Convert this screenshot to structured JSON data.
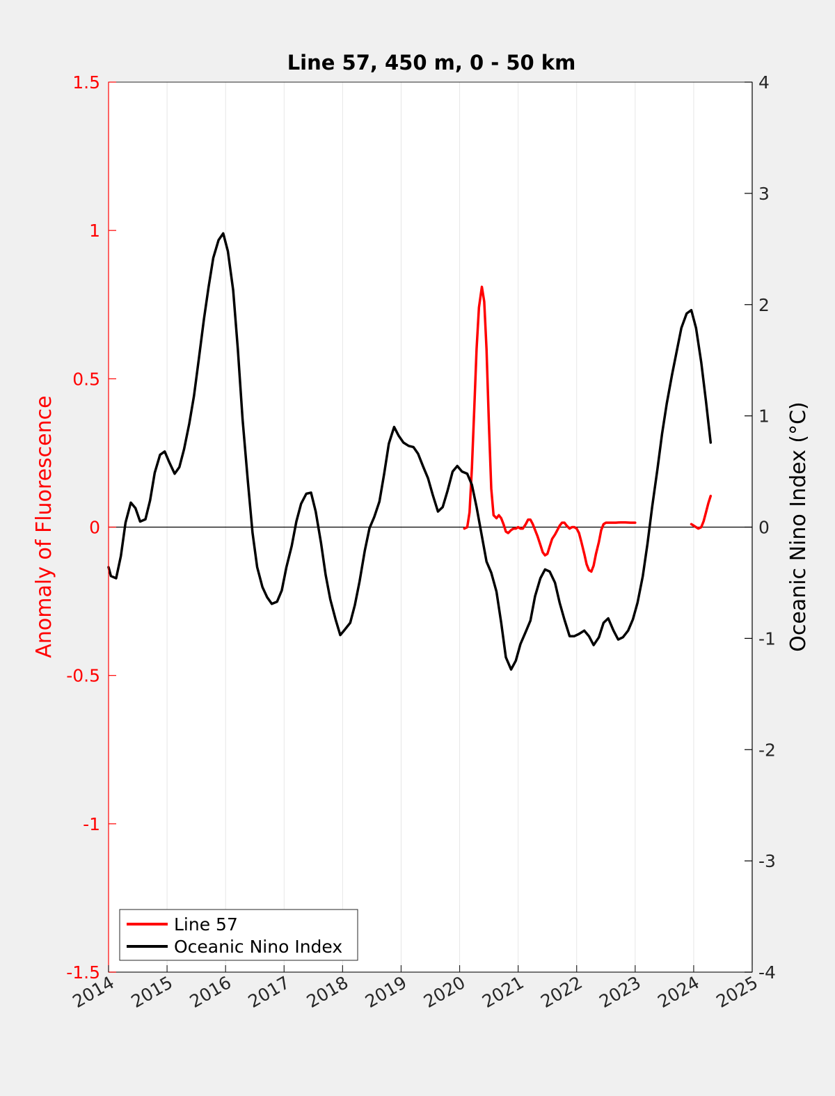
{
  "chart_data": {
    "type": "line",
    "title": "Line 57, 450 m, 0 - 50 km",
    "xlabel": "",
    "xlim": [
      2014,
      2025
    ],
    "x_ticks": [
      2014,
      2015,
      2016,
      2017,
      2018,
      2019,
      2020,
      2021,
      2022,
      2023,
      2024,
      2025
    ],
    "x_tick_labels": [
      "2014",
      "2015",
      "2016",
      "2017",
      "2018",
      "2019",
      "2020",
      "2021",
      "2022",
      "2023",
      "2024",
      "2025"
    ],
    "vertical_grid": true,
    "y_left": {
      "label": "Anomaly of Fluorescence",
      "color": "#ff0000",
      "ylim": [
        -1.5,
        1.5
      ],
      "ticks": [
        -1.5,
        -1,
        -0.5,
        0,
        0.5,
        1,
        1.5
      ],
      "tick_labels": [
        "-1.5",
        "-1",
        "-0.5",
        "0",
        "0.5",
        "1",
        "1.5"
      ]
    },
    "y_right": {
      "label": "Oceanic Nino Index (°C)",
      "color": "#000000",
      "ylim": [
        -4,
        4
      ],
      "ticks": [
        -4,
        -3,
        -2,
        -1,
        0,
        1,
        2,
        3,
        4
      ],
      "tick_labels": [
        "-4",
        "-3",
        "-2",
        "-1",
        "0",
        "1",
        "2",
        "3",
        "4"
      ]
    },
    "zero_line": 0,
    "legend": {
      "placement": "bottom-left"
    },
    "series": [
      {
        "name": "Line 57",
        "axis": "left",
        "color": "#ff0000",
        "segments": [
          [
            [
              2020.08,
              -0.005
            ],
            [
              2020.13,
              0.0
            ],
            [
              2020.17,
              0.05
            ],
            [
              2020.21,
              0.2
            ],
            [
              2020.25,
              0.4
            ],
            [
              2020.29,
              0.6
            ],
            [
              2020.33,
              0.74
            ],
            [
              2020.38,
              0.81
            ],
            [
              2020.42,
              0.76
            ],
            [
              2020.46,
              0.6
            ],
            [
              2020.5,
              0.35
            ],
            [
              2020.54,
              0.13
            ],
            [
              2020.58,
              0.04
            ],
            [
              2020.63,
              0.03
            ],
            [
              2020.67,
              0.04
            ],
            [
              2020.71,
              0.03
            ],
            [
              2020.75,
              0.01
            ],
            [
              2020.79,
              -0.015
            ],
            [
              2020.83,
              -0.02
            ],
            [
              2020.88,
              -0.01
            ],
            [
              2020.92,
              -0.005
            ],
            [
              2020.96,
              -0.005
            ],
            [
              2021.0,
              0.0
            ],
            [
              2021.04,
              -0.005
            ],
            [
              2021.08,
              -0.005
            ],
            [
              2021.13,
              0.01
            ],
            [
              2021.17,
              0.025
            ],
            [
              2021.21,
              0.025
            ],
            [
              2021.25,
              0.01
            ],
            [
              2021.29,
              -0.01
            ],
            [
              2021.33,
              -0.03
            ],
            [
              2021.38,
              -0.06
            ],
            [
              2021.42,
              -0.085
            ],
            [
              2021.46,
              -0.095
            ],
            [
              2021.5,
              -0.09
            ],
            [
              2021.54,
              -0.065
            ],
            [
              2021.58,
              -0.04
            ],
            [
              2021.63,
              -0.025
            ],
            [
              2021.67,
              -0.01
            ],
            [
              2021.71,
              0.005
            ],
            [
              2021.75,
              0.015
            ],
            [
              2021.79,
              0.015
            ],
            [
              2021.83,
              0.005
            ],
            [
              2021.88,
              -0.005
            ],
            [
              2021.92,
              0.0
            ],
            [
              2021.96,
              0.0
            ],
            [
              2022.0,
              -0.005
            ],
            [
              2022.04,
              -0.02
            ],
            [
              2022.08,
              -0.05
            ],
            [
              2022.13,
              -0.09
            ],
            [
              2022.17,
              -0.125
            ],
            [
              2022.21,
              -0.145
            ],
            [
              2022.25,
              -0.15
            ],
            [
              2022.29,
              -0.13
            ],
            [
              2022.33,
              -0.09
            ],
            [
              2022.38,
              -0.05
            ],
            [
              2022.42,
              -0.01
            ],
            [
              2022.46,
              0.01
            ],
            [
              2022.5,
              0.015
            ],
            [
              2022.58,
              0.015
            ],
            [
              2022.67,
              0.015
            ],
            [
              2022.75,
              0.016
            ],
            [
              2022.83,
              0.016
            ],
            [
              2022.92,
              0.015
            ],
            [
              2023.0,
              0.015
            ]
          ],
          [
            [
              2023.96,
              0.01
            ],
            [
              2024.0,
              0.005
            ],
            [
              2024.04,
              0.0
            ],
            [
              2024.08,
              -0.005
            ],
            [
              2024.13,
              0.0
            ],
            [
              2024.17,
              0.02
            ],
            [
              2024.21,
              0.05
            ],
            [
              2024.25,
              0.08
            ],
            [
              2024.29,
              0.105
            ]
          ]
        ]
      },
      {
        "name": "Oceanic Nino Index",
        "axis": "right",
        "color": "#000000",
        "segments": [
          [
            [
              2014.0,
              -0.36
            ],
            [
              2014.04,
              -0.44
            ],
            [
              2014.13,
              -0.46
            ],
            [
              2014.21,
              -0.26
            ],
            [
              2014.29,
              0.04
            ],
            [
              2014.38,
              0.22
            ],
            [
              2014.46,
              0.17
            ],
            [
              2014.54,
              0.05
            ],
            [
              2014.63,
              0.07
            ],
            [
              2014.71,
              0.24
            ],
            [
              2014.79,
              0.49
            ],
            [
              2014.88,
              0.65
            ],
            [
              2014.96,
              0.68
            ],
            [
              2015.04,
              0.58
            ],
            [
              2015.13,
              0.48
            ],
            [
              2015.21,
              0.54
            ],
            [
              2015.29,
              0.7
            ],
            [
              2015.38,
              0.93
            ],
            [
              2015.46,
              1.18
            ],
            [
              2015.54,
              1.5
            ],
            [
              2015.63,
              1.87
            ],
            [
              2015.71,
              2.16
            ],
            [
              2015.79,
              2.42
            ],
            [
              2015.88,
              2.58
            ],
            [
              2015.96,
              2.64
            ],
            [
              2016.04,
              2.48
            ],
            [
              2016.13,
              2.13
            ],
            [
              2016.21,
              1.6
            ],
            [
              2016.29,
              0.97
            ],
            [
              2016.38,
              0.42
            ],
            [
              2016.46,
              -0.05
            ],
            [
              2016.54,
              -0.36
            ],
            [
              2016.63,
              -0.54
            ],
            [
              2016.71,
              -0.63
            ],
            [
              2016.79,
              -0.69
            ],
            [
              2016.88,
              -0.67
            ],
            [
              2016.96,
              -0.57
            ],
            [
              2017.04,
              -0.36
            ],
            [
              2017.13,
              -0.17
            ],
            [
              2017.21,
              0.05
            ],
            [
              2017.29,
              0.21
            ],
            [
              2017.38,
              0.3
            ],
            [
              2017.46,
              0.31
            ],
            [
              2017.54,
              0.14
            ],
            [
              2017.63,
              -0.14
            ],
            [
              2017.71,
              -0.43
            ],
            [
              2017.79,
              -0.65
            ],
            [
              2017.88,
              -0.83
            ],
            [
              2017.96,
              -0.97
            ],
            [
              2018.04,
              -0.92
            ],
            [
              2018.13,
              -0.86
            ],
            [
              2018.21,
              -0.7
            ],
            [
              2018.29,
              -0.49
            ],
            [
              2018.38,
              -0.21
            ],
            [
              2018.46,
              -0.01
            ],
            [
              2018.54,
              0.09
            ],
            [
              2018.63,
              0.23
            ],
            [
              2018.71,
              0.48
            ],
            [
              2018.79,
              0.75
            ],
            [
              2018.88,
              0.9
            ],
            [
              2018.96,
              0.82
            ],
            [
              2019.04,
              0.76
            ],
            [
              2019.13,
              0.73
            ],
            [
              2019.21,
              0.72
            ],
            [
              2019.29,
              0.66
            ],
            [
              2019.38,
              0.54
            ],
            [
              2019.46,
              0.44
            ],
            [
              2019.54,
              0.29
            ],
            [
              2019.63,
              0.14
            ],
            [
              2019.71,
              0.18
            ],
            [
              2019.79,
              0.32
            ],
            [
              2019.88,
              0.5
            ],
            [
              2019.96,
              0.55
            ],
            [
              2020.04,
              0.5
            ],
            [
              2020.13,
              0.48
            ],
            [
              2020.21,
              0.38
            ],
            [
              2020.29,
              0.18
            ],
            [
              2020.38,
              -0.08
            ],
            [
              2020.46,
              -0.31
            ],
            [
              2020.54,
              -0.41
            ],
            [
              2020.63,
              -0.58
            ],
            [
              2020.71,
              -0.86
            ],
            [
              2020.79,
              -1.17
            ],
            [
              2020.88,
              -1.28
            ],
            [
              2020.96,
              -1.2
            ],
            [
              2021.04,
              -1.05
            ],
            [
              2021.13,
              -0.94
            ],
            [
              2021.21,
              -0.84
            ],
            [
              2021.29,
              -0.62
            ],
            [
              2021.38,
              -0.46
            ],
            [
              2021.46,
              -0.38
            ],
            [
              2021.54,
              -0.4
            ],
            [
              2021.63,
              -0.5
            ],
            [
              2021.71,
              -0.68
            ],
            [
              2021.79,
              -0.83
            ],
            [
              2021.88,
              -0.98
            ],
            [
              2021.96,
              -0.98
            ],
            [
              2022.04,
              -0.96
            ],
            [
              2022.13,
              -0.93
            ],
            [
              2022.21,
              -0.98
            ],
            [
              2022.29,
              -1.06
            ],
            [
              2022.38,
              -0.99
            ],
            [
              2022.46,
              -0.86
            ],
            [
              2022.54,
              -0.82
            ],
            [
              2022.63,
              -0.93
            ],
            [
              2022.71,
              -1.01
            ],
            [
              2022.79,
              -0.99
            ],
            [
              2022.88,
              -0.93
            ],
            [
              2022.96,
              -0.83
            ],
            [
              2023.04,
              -0.68
            ],
            [
              2023.13,
              -0.44
            ],
            [
              2023.21,
              -0.15
            ],
            [
              2023.29,
              0.18
            ],
            [
              2023.38,
              0.52
            ],
            [
              2023.46,
              0.84
            ],
            [
              2023.54,
              1.11
            ],
            [
              2023.63,
              1.37
            ],
            [
              2023.71,
              1.58
            ],
            [
              2023.79,
              1.79
            ],
            [
              2023.88,
              1.92
            ],
            [
              2023.96,
              1.95
            ],
            [
              2024.04,
              1.79
            ],
            [
              2024.13,
              1.48
            ],
            [
              2024.21,
              1.13
            ],
            [
              2024.29,
              0.76
            ]
          ]
        ]
      }
    ]
  }
}
